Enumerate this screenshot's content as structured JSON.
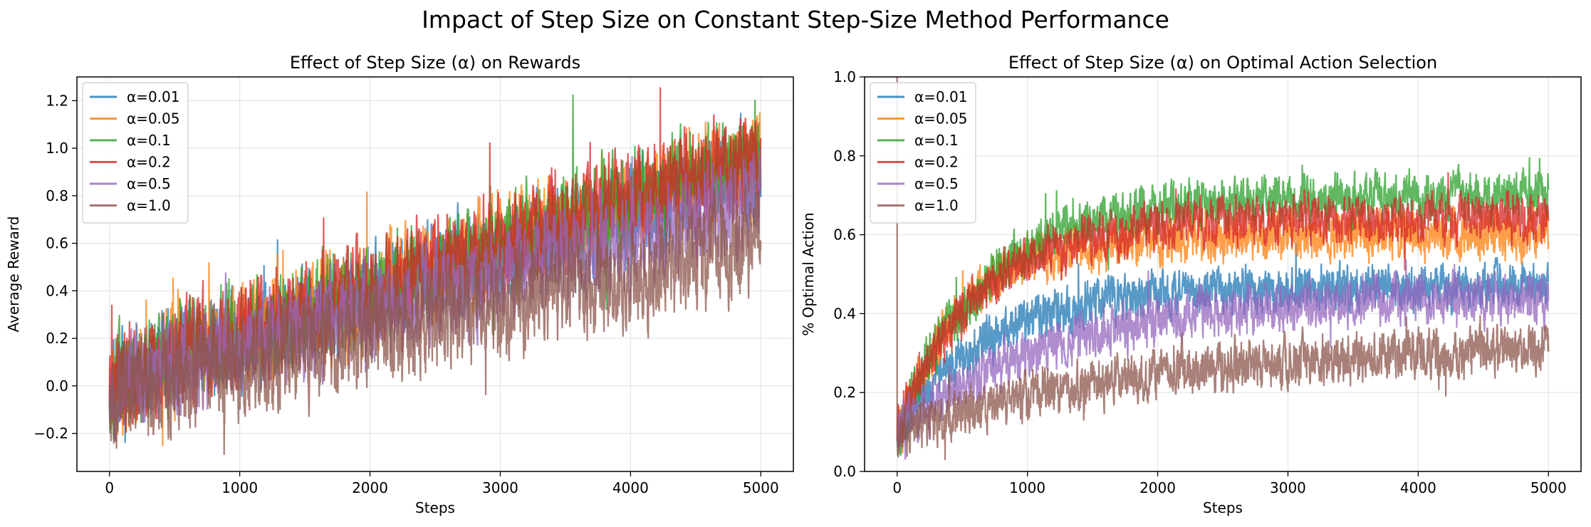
{
  "suptitle": "Impact of Step Size on Constant Step-Size Method Performance",
  "colors": [
    "#1f77b4",
    "#ff7f0e",
    "#2ca02c",
    "#d62728",
    "#9467bd",
    "#8c564b"
  ],
  "chart_data": [
    {
      "type": "line",
      "title": "Effect of Step Size (α) on Rewards",
      "xlabel": "Steps",
      "ylabel": "Average Reward",
      "xlim": [
        -250,
        5250
      ],
      "ylim": [
        -0.36,
        1.3
      ],
      "xticks": [
        0,
        1000,
        2000,
        3000,
        4000,
        5000
      ],
      "yticks": [
        -0.2,
        0.0,
        0.2,
        0.4,
        0.6,
        0.8,
        1.0,
        1.2
      ],
      "ytick_labels": [
        "−0.2",
        "0.0",
        "0.2",
        "0.4",
        "0.6",
        "0.8",
        "1.0",
        "1.2"
      ],
      "grid": true,
      "legend": "upper left",
      "n_steps": 5000,
      "series": [
        {
          "name": "α=0.01",
          "start": 0.02,
          "end": 0.92,
          "noise": 0.16,
          "seed": 11
        },
        {
          "name": "α=0.05",
          "start": 0.02,
          "end": 0.95,
          "noise": 0.17,
          "seed": 23
        },
        {
          "name": "α=0.1",
          "start": 0.02,
          "end": 0.97,
          "noise": 0.17,
          "seed": 37
        },
        {
          "name": "α=0.2",
          "start": 0.02,
          "end": 0.97,
          "noise": 0.17,
          "seed": 41
        },
        {
          "name": "α=0.5",
          "start": 0.0,
          "end": 0.78,
          "noise": 0.16,
          "seed": 53
        },
        {
          "name": "α=1.0",
          "start": -0.02,
          "end": 0.6,
          "noise": 0.18,
          "seed": 67
        }
      ]
    },
    {
      "type": "line",
      "title": "Effect of Step Size (α) on Optimal Action Selection",
      "xlabel": "Steps",
      "ylabel": "% Optimal Action",
      "xlim": [
        -250,
        5250
      ],
      "ylim": [
        0.0,
        1.0
      ],
      "xticks": [
        0,
        1000,
        2000,
        3000,
        4000,
        5000
      ],
      "yticks": [
        0.0,
        0.2,
        0.4,
        0.6,
        0.8,
        1.0
      ],
      "ytick_labels": [
        "0.0",
        "0.2",
        "0.4",
        "0.6",
        "0.8",
        "1.0"
      ],
      "grid": true,
      "legend": "upper left",
      "n_steps": 5000,
      "series": [
        {
          "name": "α=0.01",
          "start": 0.1,
          "plateau": 0.47,
          "rate": 700,
          "noise": 0.045,
          "seed": 71
        },
        {
          "name": "α=0.05",
          "start": 0.1,
          "plateau": 0.6,
          "rate": 500,
          "noise": 0.05,
          "seed": 83
        },
        {
          "name": "α=0.1",
          "start": 0.1,
          "plateau": 0.7,
          "rate": 700,
          "noise": 0.05,
          "seed": 97
        },
        {
          "name": "α=0.2",
          "start": 0.1,
          "plateau": 0.64,
          "rate": 600,
          "noise": 0.05,
          "seed": 101
        },
        {
          "name": "α=0.5",
          "start": 0.1,
          "plateau": 0.45,
          "rate": 1200,
          "noise": 0.05,
          "seed": 113
        },
        {
          "name": "α=1.0",
          "start": 0.1,
          "plateau": 0.33,
          "rate": 2000,
          "noise": 0.05,
          "seed": 127
        }
      ]
    }
  ]
}
